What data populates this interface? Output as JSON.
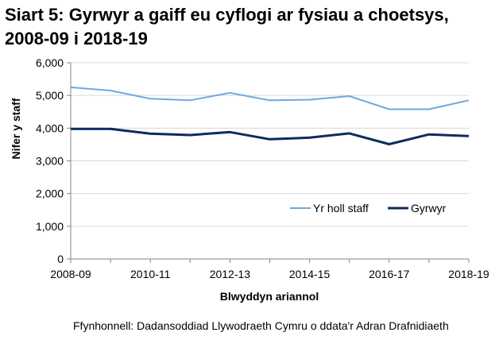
{
  "title_line1": "Siart 5: Gyrwyr a gaiff eu cyflogi ar fysiau a choetsys,",
  "title_line2": "2008-09 i 2018-19",
  "source": "Ffynhonnell: Dadansoddiad Llywodraeth Cymru o ddata'r Adran Drafnidiaeth",
  "colors": {
    "all_staff": "#6fa8dc",
    "drivers": "#0b2c5e",
    "axis": "#868686"
  },
  "chart_data": {
    "type": "line",
    "title": "Siart 5: Gyrwyr a gaiff eu cyflogi ar fysiau a choetsys, 2008-09 i 2018-19",
    "xlabel": "Blwyddyn ariannol",
    "ylabel": "Nifer y staff",
    "categories": [
      "2008-09",
      "2009-10",
      "2010-11",
      "2011-12",
      "2012-13",
      "2013-14",
      "2014-15",
      "2015-16",
      "2016-17",
      "2017-18",
      "2018-19"
    ],
    "x_tick_labels": [
      "2008-09",
      "2010-11",
      "2012-13",
      "2014-15",
      "2016-17",
      "2018-19"
    ],
    "y_tick_labels": [
      "0",
      "1,000",
      "2,000",
      "3,000",
      "4,000",
      "5,000",
      "6,000"
    ],
    "ylim": [
      0,
      6000
    ],
    "y_ticks": [
      0,
      1000,
      2000,
      3000,
      4000,
      5000,
      6000
    ],
    "grid": true,
    "legend_position": "center-right",
    "series": [
      {
        "name": "Yr holl staff",
        "values": [
          5250,
          5150,
          4900,
          4850,
          5080,
          4850,
          4870,
          4980,
          4580,
          4580,
          4850
        ]
      },
      {
        "name": "Gyrwyr",
        "values": [
          3980,
          3980,
          3830,
          3790,
          3880,
          3660,
          3710,
          3840,
          3510,
          3810,
          3760
        ]
      }
    ]
  }
}
